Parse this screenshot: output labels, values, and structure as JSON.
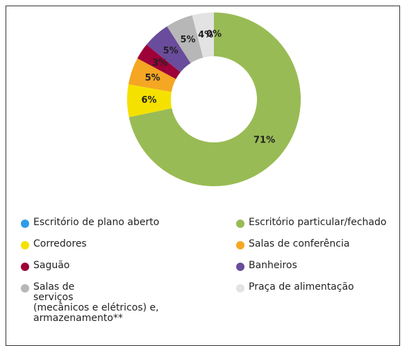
{
  "chart_data": {
    "type": "pie",
    "donut": true,
    "categories": [
      "Escritório de plano aberto",
      "Escritório particular/fechado",
      "Corredores",
      "Salas de conferência",
      "Saguão",
      "Banheiros",
      "Salas de\nserviços\n(mecânicos e elétricos) e,\narmazenamento**",
      "Praça de alimentação"
    ],
    "values": [
      0,
      71,
      6,
      5,
      3,
      5,
      5,
      4
    ],
    "value_labels": [
      "0%",
      "71%",
      "6%",
      "5%",
      "3%",
      "5%",
      "5%",
      "4%"
    ],
    "colors": [
      "#2f9be8",
      "#99bb55",
      "#f5e100",
      "#f5a623",
      "#9e0039",
      "#6a4c9c",
      "#b7b7b7",
      "#e3e3e3"
    ]
  }
}
